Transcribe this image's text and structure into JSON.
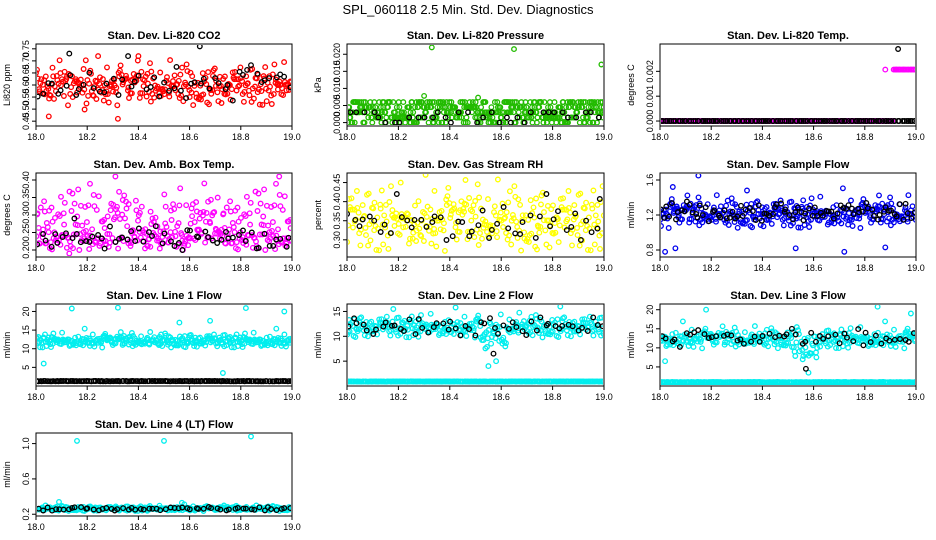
{
  "figure_title": "SPL_060118  2.5 Min. Std. Dev. Diagnostics",
  "colors": {
    "red": "#ff0000",
    "green": "#22bb00",
    "magenta": "#ff00ff",
    "yellow": "#ffff00",
    "blue": "#0000ee",
    "cyan": "#00eeee",
    "black": "#000000"
  },
  "chart_data": [
    {
      "type": "scatter",
      "title": "Stan. Dev. Li-820 CO2",
      "ylabel": "Li820 ppm",
      "xlim": [
        18.0,
        19.0
      ],
      "ylim": [
        0.43,
        0.77
      ],
      "xticks": [
        "18.0",
        "18.2",
        "18.4",
        "18.6",
        "18.8",
        "19.0"
      ],
      "yticks": [
        {
          "v": 0.45,
          "label": "0.45"
        },
        {
          "v": 0.5,
          "label": "0.50"
        },
        {
          "v": 0.55,
          "label": "0.55"
        },
        {
          "v": 0.6,
          "label": "0.60"
        },
        {
          "v": 0.65,
          "label": "0.65"
        },
        {
          "v": 0.7,
          "label": "0.70"
        },
        {
          "v": 0.75,
          "label": "0.75"
        }
      ],
      "series": [
        {
          "name": "primary",
          "color": "red",
          "n": 300,
          "base": 0.6,
          "spread": 0.045,
          "min": 0.46,
          "max": 0.72,
          "outliers": [
            [
              18.05,
              0.47
            ],
            [
              18.32,
              0.46
            ],
            [
              18.4,
              0.72
            ]
          ]
        },
        {
          "name": "secondary",
          "color": "black",
          "n": 55,
          "base": 0.61,
          "spread": 0.04,
          "min": 0.5,
          "max": 0.72,
          "outliers": [
            [
              18.64,
              0.76
            ],
            [
              18.13,
              0.73
            ]
          ]
        }
      ]
    },
    {
      "type": "scatter",
      "title": "Stan. Dev. Li-820 Pressure",
      "ylabel": "kPa",
      "xlim": [
        18.0,
        19.0
      ],
      "ylim": [
        -0.001,
        0.023
      ],
      "xticks": [
        "18.0",
        "18.2",
        "18.4",
        "18.6",
        "18.8",
        "19.0"
      ],
      "yticks": [
        {
          "v": 0.0,
          "label": "0.000"
        },
        {
          "v": 0.005,
          "label": "0.005"
        },
        {
          "v": 0.01,
          "label": "0.010"
        },
        {
          "v": 0.015,
          "label": "0.015"
        },
        {
          "v": 0.02,
          "label": "0.020"
        }
      ],
      "series": [
        {
          "name": "primary",
          "color": "green",
          "levels": [
            0.0,
            0.0015,
            0.003,
            0.0045,
            0.006
          ],
          "n": 420,
          "outliers": [
            [
              18.33,
              0.022
            ],
            [
              18.65,
              0.0215
            ],
            [
              18.99,
              0.017
            ],
            [
              18.3,
              0.0078
            ],
            [
              18.51,
              0.0073
            ]
          ]
        },
        {
          "name": "secondary",
          "color": "black",
          "levels": [
            0.0,
            0.0015,
            0.003
          ],
          "n": 35,
          "outliers": []
        }
      ]
    },
    {
      "type": "scatter",
      "title": "Stan. Dev. Li-820 Temp.",
      "ylabel": "degrees C",
      "xlim": [
        18.0,
        19.0
      ],
      "ylim": [
        -0.0002,
        0.0031
      ],
      "xticks": [
        "18.0",
        "18.2",
        "18.4",
        "18.6",
        "18.8",
        "19.0"
      ],
      "yticks": [
        {
          "v": 0.0,
          "label": "0.000"
        },
        {
          "v": 0.001,
          "label": "0.001"
        },
        {
          "v": 0.002,
          "label": "0.002"
        }
      ],
      "series": [
        {
          "name": "primary",
          "color": "magenta",
          "baseline": 0.0,
          "n": 200,
          "step_from": 18.91,
          "step_value": 0.00207,
          "outliers": [
            [
              18.88,
              0.00207
            ]
          ]
        },
        {
          "name": "secondary",
          "color": "black",
          "baseline": 0.0,
          "n": 120,
          "outliers": [
            [
              18.93,
              0.0029
            ]
          ]
        }
      ]
    },
    {
      "type": "scatter",
      "title": "Stan. Dev. Amb. Box Temp.",
      "ylabel": "degrees C",
      "xlim": [
        18.0,
        19.0
      ],
      "ylim": [
        0.18,
        0.42
      ],
      "xticks": [
        "18.0",
        "18.2",
        "18.4",
        "18.6",
        "18.8",
        "19.0"
      ],
      "yticks": [
        {
          "v": 0.2,
          "label": "0.20"
        },
        {
          "v": 0.25,
          "label": "0.25"
        },
        {
          "v": 0.3,
          "label": "0.30"
        },
        {
          "v": 0.35,
          "label": "0.35"
        },
        {
          "v": 0.4,
          "label": "0.40"
        }
      ],
      "series": [
        {
          "name": "primary",
          "color": "magenta",
          "n": 340,
          "bands": [
            [
              0.31,
              0.035
            ],
            [
              0.235,
              0.02
            ]
          ],
          "min": 0.2,
          "max": 0.41,
          "outliers": [
            [
              18.13,
              0.19
            ],
            [
              18.31,
              0.41
            ],
            [
              18.95,
              0.41
            ]
          ]
        },
        {
          "name": "secondary",
          "color": "black",
          "n": 60,
          "bands": [
            [
              0.235,
              0.02
            ]
          ],
          "min": 0.2,
          "max": 0.29,
          "outliers": [
            [
              18.15,
              0.29
            ]
          ]
        }
      ]
    },
    {
      "type": "scatter",
      "title": "Stan. Dev. Gas Stream RH",
      "ylabel": "percent",
      "xlim": [
        18.0,
        19.0
      ],
      "ylim": [
        0.255,
        0.475
      ],
      "xticks": [
        "18.0",
        "18.2",
        "18.4",
        "18.6",
        "18.8",
        "19.0"
      ],
      "yticks": [
        {
          "v": 0.3,
          "label": "0.30"
        },
        {
          "v": 0.35,
          "label": "0.35"
        },
        {
          "v": 0.4,
          "label": "0.40"
        },
        {
          "v": 0.45,
          "label": "0.45"
        }
      ],
      "series": [
        {
          "name": "primary",
          "color": "yellow",
          "n": 300,
          "base": 0.355,
          "spread": 0.045,
          "min": 0.26,
          "max": 0.47,
          "outliers": []
        },
        {
          "name": "secondary",
          "color": "black",
          "n": 50,
          "base": 0.35,
          "spread": 0.035,
          "min": 0.29,
          "max": 0.42,
          "outliers": []
        }
      ]
    },
    {
      "type": "scatter",
      "title": "Stan. Dev. Sample Flow",
      "ylabel": "ml/min",
      "xlim": [
        18.0,
        19.0
      ],
      "ylim": [
        0.72,
        1.68
      ],
      "xticks": [
        "18.0",
        "18.2",
        "18.4",
        "18.6",
        "18.8",
        "19.0"
      ],
      "yticks": [
        {
          "v": 0.8,
          "label": "0.8"
        },
        {
          "v": 1.2,
          "label": "1.2"
        },
        {
          "v": 1.6,
          "label": "1.6"
        }
      ],
      "series": [
        {
          "name": "primary",
          "color": "blue",
          "n": 330,
          "base": 1.22,
          "spread": 0.09,
          "min": 0.85,
          "max": 1.55,
          "outliers": [
            [
              18.02,
              0.78
            ],
            [
              18.06,
              0.82
            ],
            [
              18.15,
              1.65
            ],
            [
              18.53,
              0.82
            ],
            [
              18.72,
              0.78
            ],
            [
              18.88,
              0.83
            ],
            [
              18.05,
              1.52
            ],
            [
              18.34,
              1.48
            ]
          ]
        },
        {
          "name": "secondary",
          "color": "black",
          "n": 90,
          "base": 1.24,
          "spread": 0.06,
          "min": 1.05,
          "max": 1.4,
          "outliers": []
        }
      ]
    },
    {
      "type": "scatter",
      "title": "Stan. Dev. Line 1 Flow",
      "ylabel": "ml/min",
      "xlim": [
        18.0,
        19.0
      ],
      "ylim": [
        0.0,
        22.0
      ],
      "xticks": [
        "18.0",
        "18.2",
        "18.4",
        "18.6",
        "18.8",
        "19.0"
      ],
      "yticks": [
        {
          "v": 5,
          "label": "5"
        },
        {
          "v": 10,
          "label": "10"
        },
        {
          "v": 15,
          "label": "15"
        },
        {
          "v": 20,
          "label": "20"
        }
      ],
      "series": [
        {
          "name": "primary",
          "color": "cyan",
          "n": 330,
          "base": 12.2,
          "spread": 1.0,
          "min": 7.0,
          "max": 17.5,
          "outliers": [
            [
              18.14,
              20.8
            ],
            [
              18.32,
              21.0
            ],
            [
              18.82,
              20.9
            ],
            [
              18.97,
              20.0
            ],
            [
              18.56,
              17.0
            ],
            [
              18.68,
              17.5
            ],
            [
              18.03,
              6.0
            ],
            [
              18.73,
              3.5
            ]
          ]
        },
        {
          "name": "secondary",
          "color": "black",
          "level": 1.3,
          "n": 150,
          "outliers": []
        }
      ]
    },
    {
      "type": "scatter",
      "title": "Stan. Dev. Line 2 Flow",
      "ylabel": "ml/min",
      "xlim": [
        18.0,
        19.0
      ],
      "ylim": [
        0.0,
        16.5
      ],
      "xticks": [
        "18.0",
        "18.2",
        "18.4",
        "18.6",
        "18.8",
        "19.0"
      ],
      "yticks": [
        {
          "v": 5,
          "label": "5"
        },
        {
          "v": 10,
          "label": "10"
        },
        {
          "v": 15,
          "label": "15"
        }
      ],
      "series": [
        {
          "name": "primary",
          "color": "cyan",
          "n": 300,
          "base": 12.0,
          "spread": 1.2,
          "min": 6.0,
          "max": 15.8,
          "dip": [
            18.52,
            18.62,
            9.0
          ],
          "outliers": [
            [
              18.55,
              4.0
            ],
            [
              18.58,
              5.0
            ],
            [
              18.83,
              16.0
            ],
            [
              18.18,
              15.5
            ]
          ]
        },
        {
          "name": "cyan-floor",
          "color": "cyan",
          "level": 0.9,
          "n": 220,
          "outliers": []
        },
        {
          "name": "secondary",
          "color": "black",
          "n": 55,
          "base": 12.0,
          "spread": 1.0,
          "min": 8.0,
          "max": 13.8,
          "outliers": [
            [
              18.57,
              6.5
            ]
          ]
        }
      ]
    },
    {
      "type": "scatter",
      "title": "Stan. Dev. Line 3 Flow",
      "ylabel": "ml/min",
      "xlim": [
        18.0,
        19.0
      ],
      "ylim": [
        0.0,
        21.5
      ],
      "xticks": [
        "18.0",
        "18.2",
        "18.4",
        "18.6",
        "18.8",
        "19.0"
      ],
      "yticks": [
        {
          "v": 5,
          "label": "5"
        },
        {
          "v": 10,
          "label": "10"
        },
        {
          "v": 15,
          "label": "15"
        },
        {
          "v": 20,
          "label": "20"
        }
      ],
      "series": [
        {
          "name": "primary",
          "color": "cyan",
          "n": 300,
          "base": 12.5,
          "spread": 1.4,
          "min": 7.0,
          "max": 18.0,
          "dip": [
            18.52,
            18.62,
            9.0
          ],
          "outliers": [
            [
              18.18,
              20.0
            ],
            [
              18.85,
              20.8
            ],
            [
              18.98,
              19.0
            ],
            [
              18.02,
              6.5
            ],
            [
              18.58,
              3.5
            ]
          ]
        },
        {
          "name": "cyan-floor",
          "color": "cyan",
          "level": 1.0,
          "n": 220,
          "outliers": []
        },
        {
          "name": "secondary",
          "color": "black",
          "n": 55,
          "base": 12.5,
          "spread": 1.2,
          "min": 8.0,
          "max": 15.0,
          "outliers": [
            [
              18.57,
              4.5
            ]
          ]
        }
      ]
    },
    {
      "type": "scatter",
      "title": "Stan. Dev. Line 4 (LT) Flow",
      "ylabel": "ml/min",
      "xlim": [
        18.0,
        19.0
      ],
      "ylim": [
        0.18,
        1.12
      ],
      "xticks": [
        "18.0",
        "18.2",
        "18.4",
        "18.6",
        "18.8",
        "19.0"
      ],
      "yticks": [
        {
          "v": 0.2,
          "label": "0.2"
        },
        {
          "v": 0.6,
          "label": "0.6"
        },
        {
          "v": 1.0,
          "label": "1.0"
        }
      ],
      "series": [
        {
          "name": "primary",
          "color": "cyan",
          "n": 300,
          "base": 0.265,
          "spread": 0.015,
          "min": 0.22,
          "max": 0.33,
          "outliers": [
            [
              18.16,
              1.03
            ],
            [
              18.5,
              1.03
            ],
            [
              18.84,
              1.08
            ],
            [
              18.09,
              0.34
            ],
            [
              18.57,
              0.33
            ]
          ]
        },
        {
          "name": "secondary",
          "color": "black",
          "n": 60,
          "base": 0.262,
          "spread": 0.012,
          "min": 0.23,
          "max": 0.3,
          "outliers": []
        }
      ]
    }
  ]
}
